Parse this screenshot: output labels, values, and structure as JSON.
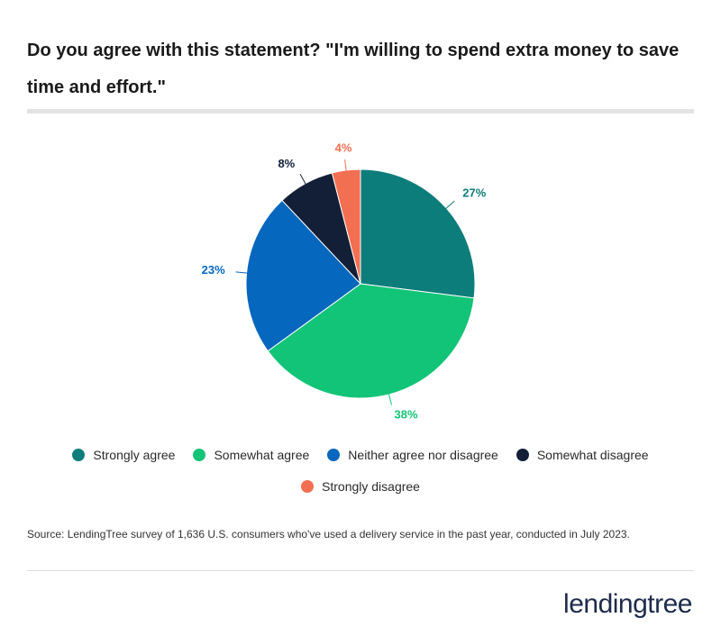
{
  "chart_data": {
    "type": "pie",
    "title": "Do you agree with this statement? \"I'm willing to spend extra money to save time and effort.\"",
    "categories": [
      "Strongly agree",
      "Somewhat agree",
      "Neither agree nor disagree",
      "Somewhat disagree",
      "Strongly disagree"
    ],
    "values": [
      27,
      38,
      23,
      8,
      4
    ],
    "value_labels": [
      "27%",
      "38%",
      "23%",
      "8%",
      "4%"
    ],
    "colors": [
      "#0d7d7b",
      "#12c477",
      "#0567bd",
      "#131f36",
      "#f26f52"
    ]
  },
  "source": "Source: LendingTree survey of 1,636 U.S. consumers who've used a delivery service in the past year, conducted in July 2023.",
  "logo": "lendingtree"
}
